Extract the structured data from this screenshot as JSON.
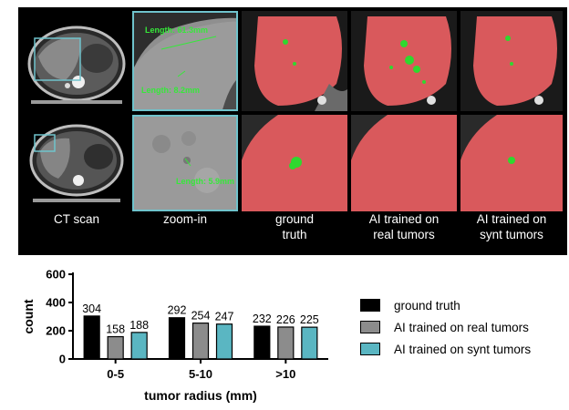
{
  "image_panel": {
    "captions": {
      "ct_scan": "CT scan",
      "zoom_in": "zoom-in",
      "ground_truth": "ground\ntruth",
      "ai_real": "AI trained on\nreal tumors",
      "ai_synt": "AI trained on\nsynt tumors"
    },
    "measurements": {
      "row1_a": "Length: 61.3mm",
      "row1_b": "Length: 8.2mm",
      "row2_a": "Length: 5.9mm"
    },
    "colors": {
      "background": "#000000",
      "liver_mask": "#d9595c",
      "tumor_mask": "#2fd82f",
      "zoom_box": "#6fc3cc"
    }
  },
  "chart_data": {
    "type": "bar",
    "categories": [
      "0-5",
      "5-10",
      ">10"
    ],
    "series": [
      {
        "name": "ground truth",
        "values": [
          304,
          292,
          232
        ],
        "color": "#000000"
      },
      {
        "name": "AI trained on real tumors",
        "values": [
          158,
          254,
          226
        ],
        "color": "#8c8c8c"
      },
      {
        "name": "AI trained on synt tumors",
        "values": [
          188,
          247,
          225
        ],
        "color": "#5ab6c2"
      }
    ],
    "xlabel": "tumor radius (mm)",
    "ylabel": "count",
    "ylim": [
      0,
      600
    ],
    "yticks": [
      0,
      200,
      400,
      600
    ],
    "data_labels": true,
    "grid": false,
    "legend_position": "right"
  }
}
